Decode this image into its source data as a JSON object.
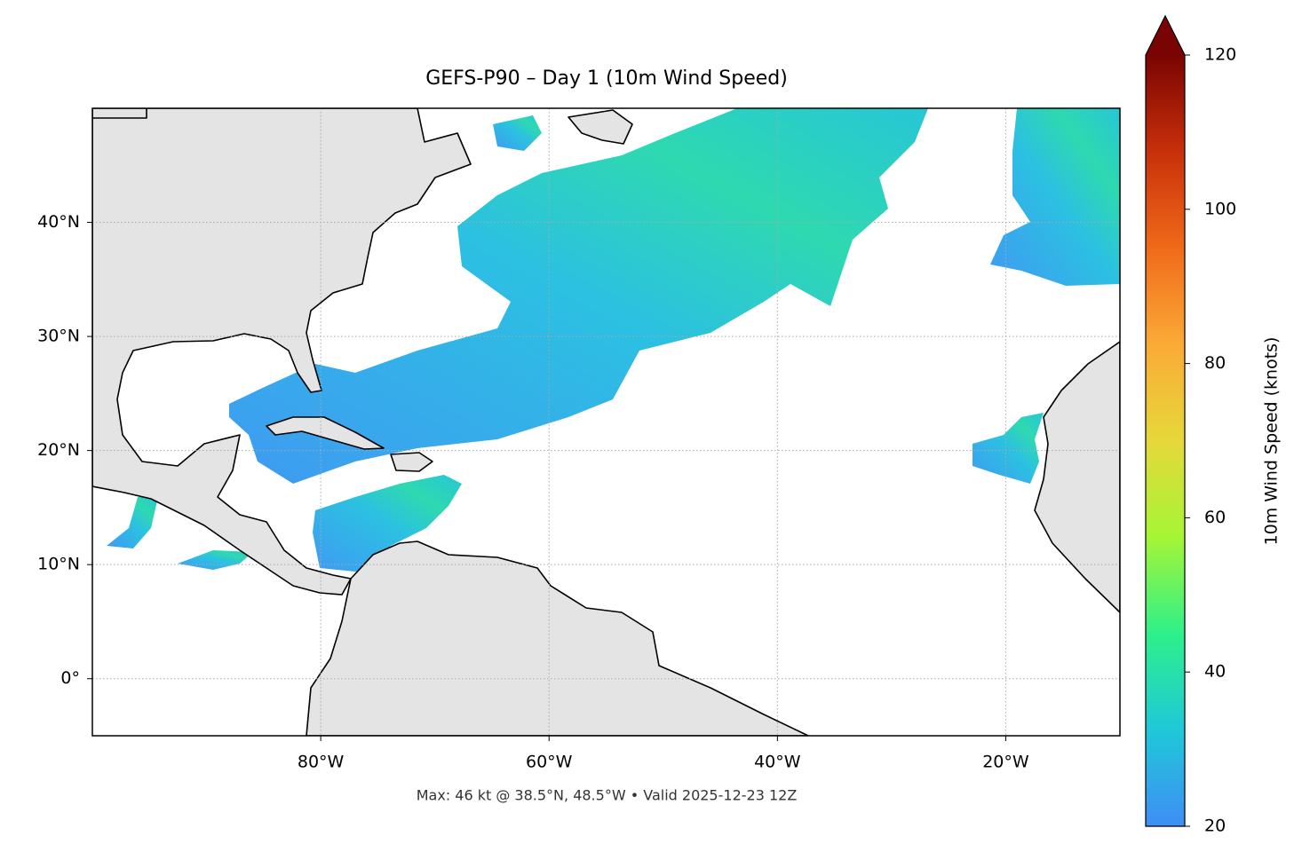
{
  "chart_data": {
    "type": "map",
    "title": "GEFS-P90 – Day 1 (10m Wind Speed)",
    "footer": "Max: 46 kt @ 38.5°N, 48.5°W • Valid 2025-12-23 12Z",
    "xlim": [
      -100,
      -10
    ],
    "ylim": [
      -5,
      50
    ],
    "xticks": [
      {
        "value": -80,
        "label": "80°W"
      },
      {
        "value": -60,
        "label": "60°W"
      },
      {
        "value": -40,
        "label": "40°W"
      },
      {
        "value": -20,
        "label": "20°W"
      }
    ],
    "yticks": [
      {
        "value": 0,
        "label": "0°"
      },
      {
        "value": 10,
        "label": "10°N"
      },
      {
        "value": 20,
        "label": "20°N"
      },
      {
        "value": 30,
        "label": "30°N"
      },
      {
        "value": 40,
        "label": "40°N"
      }
    ],
    "grid": true,
    "colorbar": {
      "label": "10m Wind Speed (knots)",
      "lim": [
        20,
        120
      ],
      "ticks": [
        20,
        40,
        60,
        80,
        100,
        120
      ],
      "extend": "max",
      "colormap": [
        "#3f8ef5",
        "#1fc8d8",
        "#2ef08a",
        "#a6f535",
        "#e6d83a",
        "#fbaa36",
        "#f06a1a",
        "#c8300a",
        "#7a0403"
      ]
    }
  }
}
